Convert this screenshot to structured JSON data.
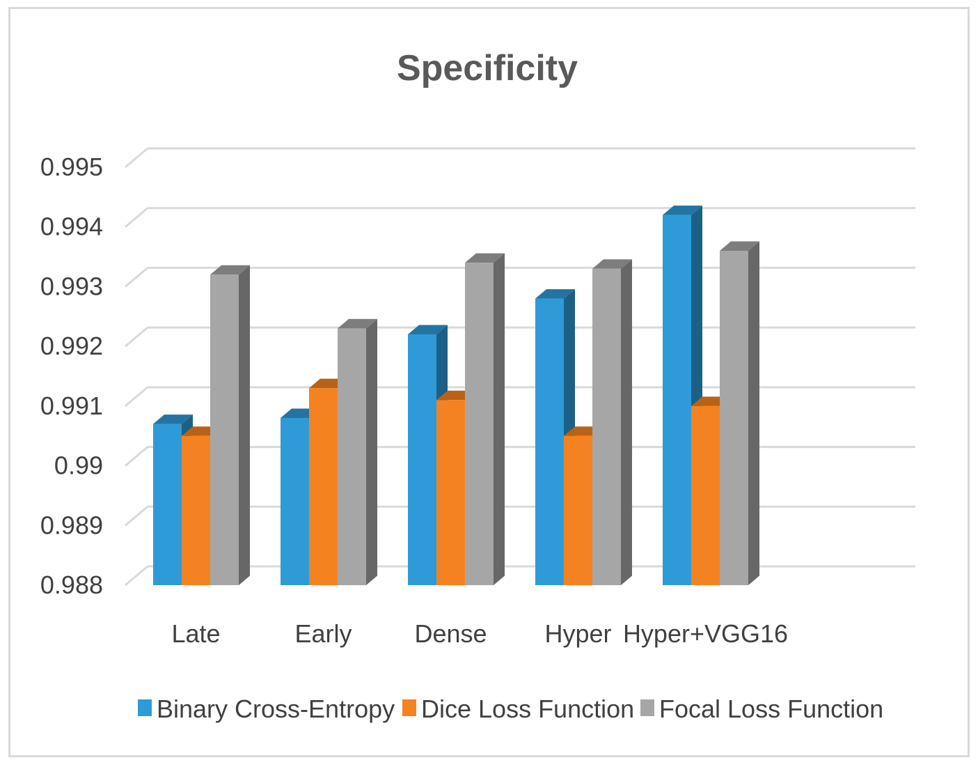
{
  "chart_data": {
    "type": "bar",
    "title": "Specificity",
    "xlabel": "",
    "ylabel": "",
    "ylim": [
      0.988,
      0.995
    ],
    "yticks": [
      "0.988",
      "0.989",
      "0.99",
      "0.991",
      "0.992",
      "0.993",
      "0.994",
      "0.995"
    ],
    "categories": [
      "Late",
      "Early",
      "Dense",
      "Hyper",
      "Hyper+VGG16"
    ],
    "series": [
      {
        "name": "Binary Cross-Entropy",
        "color": "#2e9bd8",
        "values": [
          0.9907,
          0.9908,
          0.9922,
          0.9928,
          0.9942
        ]
      },
      {
        "name": "Dice Loss Function",
        "color": "#f58220",
        "values": [
          0.9905,
          0.9913,
          0.9911,
          0.9905,
          0.991
        ]
      },
      {
        "name": "Focal Loss Function",
        "color": "#a6a6a6",
        "values": [
          0.9932,
          0.9923,
          0.9934,
          0.9933,
          0.9936
        ]
      }
    ],
    "legend_position": "bottom",
    "grid": true
  }
}
